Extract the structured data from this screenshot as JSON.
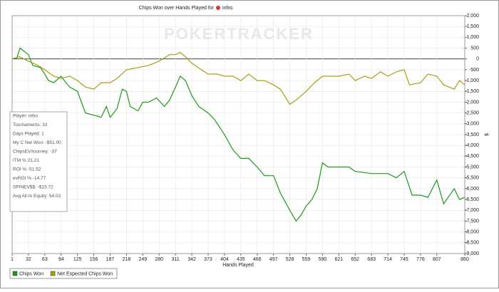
{
  "chart_data": {
    "type": "line",
    "title": "Chips Won over Hands Played for",
    "player": "infxs",
    "watermark": "POKERTRACKER",
    "x_label": "Hands Played",
    "y_label": "$",
    "xlim": [
      1,
      860
    ],
    "xticks": [
      1,
      32,
      63,
      94,
      125,
      156,
      187,
      218,
      249,
      280,
      311,
      342,
      373,
      404,
      435,
      466,
      497,
      528,
      559,
      590,
      621,
      652,
      683,
      714,
      745,
      776,
      807,
      860
    ],
    "ylim": [
      -9000,
      2000
    ],
    "yticks": [
      {
        "value": 2000,
        "label": "2,000"
      },
      {
        "value": 1500,
        "label": "1,500"
      },
      {
        "value": 1000,
        "label": "1,000"
      },
      500,
      0,
      -500,
      {
        "value": -1000,
        "label": "-1,000"
      },
      {
        "value": -1500,
        "label": "-1,500"
      },
      {
        "value": -2000,
        "label": "-2,000"
      },
      {
        "value": -2500,
        "label": "-2,500"
      },
      {
        "value": -3000,
        "label": "-3,000"
      },
      {
        "value": -3500,
        "label": "-3,500"
      },
      {
        "value": -4000,
        "label": "-4,000"
      },
      {
        "value": -4500,
        "label": "-4,500"
      },
      {
        "value": -5000,
        "label": "-5,000"
      },
      {
        "value": -5500,
        "label": "-5,500"
      },
      {
        "value": -6000,
        "label": "-6,000"
      },
      {
        "value": -6500,
        "label": "-6,500"
      },
      {
        "value": -7000,
        "label": "-7,000"
      },
      {
        "value": -7500,
        "label": "-7,500"
      },
      {
        "value": -8000,
        "label": "-8,000"
      },
      {
        "value": -8500,
        "label": "-8,500"
      },
      {
        "value": -9000,
        "label": "-9,000"
      }
    ],
    "grid": true,
    "series": [
      {
        "name": "Chips Won",
        "color": "#1a9a1a",
        "x": [
          1,
          10,
          16,
          32,
          40,
          55,
          63,
          70,
          80,
          94,
          100,
          110,
          125,
          140,
          156,
          170,
          180,
          187,
          200,
          210,
          218,
          225,
          240,
          249,
          260,
          275,
          290,
          300,
          311,
          320,
          330,
          342,
          355,
          373,
          385,
          404,
          420,
          435,
          450,
          466,
          480,
          497,
          510,
          528,
          540,
          550,
          559,
          570,
          580,
          590,
          600,
          621,
          640,
          652,
          683,
          700,
          714,
          730,
          745,
          760,
          776,
          790,
          807,
          820,
          840,
          850,
          860
        ],
        "values": [
          0,
          50,
          500,
          200,
          -300,
          -400,
          -700,
          -1000,
          -1100,
          -800,
          -1000,
          -1300,
          -1500,
          -2500,
          -2600,
          -2700,
          -2200,
          -2700,
          -2300,
          -1400,
          -1500,
          -2200,
          -2400,
          -2000,
          -2000,
          -1800,
          -2200,
          -1900,
          -1300,
          -800,
          -1000,
          -1700,
          -2200,
          -2500,
          -2800,
          -3500,
          -4200,
          -4600,
          -4600,
          -5000,
          -5400,
          -5400,
          -6200,
          -7000,
          -7500,
          -7200,
          -6800,
          -6500,
          -6000,
          -4800,
          -5000,
          -5000,
          -5000,
          -5200,
          -5300,
          -5300,
          -5300,
          -5500,
          -5200,
          -6300,
          -6300,
          -6400,
          -5600,
          -6700,
          -6000,
          -6500,
          -6400
        ]
      },
      {
        "name": "Net Expected Chips Won",
        "color": "#a8a010",
        "x": [
          1,
          15,
          32,
          50,
          63,
          80,
          94,
          110,
          125,
          140,
          156,
          170,
          187,
          200,
          218,
          240,
          260,
          280,
          300,
          311,
          320,
          330,
          342,
          360,
          373,
          390,
          404,
          420,
          435,
          450,
          466,
          480,
          497,
          510,
          528,
          540,
          559,
          575,
          590,
          610,
          621,
          640,
          652,
          670,
          683,
          700,
          714,
          730,
          745,
          755,
          776,
          790,
          807,
          820,
          840,
          850,
          860
        ],
        "values": [
          0,
          100,
          -100,
          -300,
          -500,
          -800,
          -900,
          -800,
          -1000,
          -1300,
          -1400,
          -1100,
          -1100,
          -900,
          -500,
          -400,
          -300,
          -100,
          200,
          200,
          300,
          100,
          -200,
          -500,
          -700,
          -700,
          -800,
          -800,
          -1000,
          -700,
          -1000,
          -1000,
          -1200,
          -1400,
          -2100,
          -1900,
          -1500,
          -1100,
          -800,
          -800,
          -800,
          -700,
          -1000,
          -800,
          -900,
          -600,
          -800,
          -600,
          -500,
          -1200,
          -1100,
          -700,
          -800,
          -1200,
          -1400,
          -1000,
          -1200
        ]
      }
    ],
    "stats": [
      "Player: infxs",
      "Tournaments: 33",
      "Days Played: 1",
      "My C Net Won: -$51.00",
      "ChipsEV/tourney: -37",
      "ITM % 21.21",
      "ROI % -51.52",
      "evROI % -14.77",
      "SPINEV$$: -$15.72",
      "Avg All-In Equity: 54.03"
    ]
  }
}
